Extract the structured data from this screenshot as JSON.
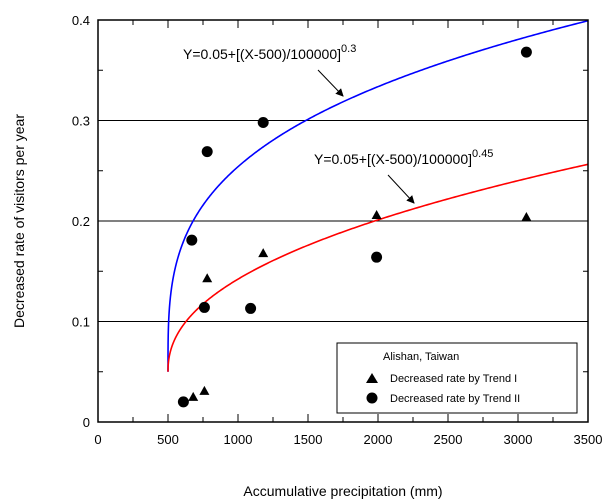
{
  "chart_data": {
    "type": "scatter",
    "xlabel": "Accumulative precipitation (mm)",
    "ylabel": "Decreased rate of visitors per year",
    "xlim": [
      0,
      3500
    ],
    "ylim": [
      0,
      0.4
    ],
    "x_ticks": [
      0,
      500,
      1000,
      1500,
      2000,
      2500,
      3000,
      3500
    ],
    "x_tick_labels": [
      "0",
      "500",
      "1000",
      "1500",
      "2000",
      "2500",
      "3000",
      "3500"
    ],
    "y_ticks": [
      0,
      0.1,
      0.2,
      0.3,
      0.4
    ],
    "y_tick_labels": [
      "0",
      "0.1",
      "0.2",
      "0.3",
      "0.4"
    ],
    "grid": "horizontal",
    "series": [
      {
        "name": "Decreased rate by Trend I",
        "marker": "triangle",
        "color": "#000000",
        "points": [
          [
            680,
            0.025
          ],
          [
            760,
            0.031
          ],
          [
            780,
            0.143
          ],
          [
            1180,
            0.168
          ],
          [
            1990,
            0.206
          ],
          [
            3060,
            0.204
          ]
        ]
      },
      {
        "name": "Decreased rate by Trend II",
        "marker": "circle",
        "color": "#000000",
        "points": [
          [
            610,
            0.02
          ],
          [
            670,
            0.181
          ],
          [
            760,
            0.114
          ],
          [
            780,
            0.269
          ],
          [
            1090,
            0.113
          ],
          [
            1180,
            0.298
          ],
          [
            1990,
            0.164
          ],
          [
            3060,
            0.368
          ]
        ]
      }
    ],
    "curves": [
      {
        "label": "Y=0.05+[(X-500)/100000]",
        "exponent": "0.3",
        "color": "#0000ff",
        "a": 0.05,
        "x0": 500,
        "scale": 100000,
        "power": 0.3
      },
      {
        "label": "Y=0.05+[(X-500)/100000]",
        "exponent": "0.45",
        "color": "#ff0000",
        "a": 0.05,
        "x0": 500,
        "scale": 100000,
        "power": 0.45
      }
    ],
    "legend": {
      "position": "bottom-right",
      "title": "Alishan, Taiwan"
    }
  }
}
